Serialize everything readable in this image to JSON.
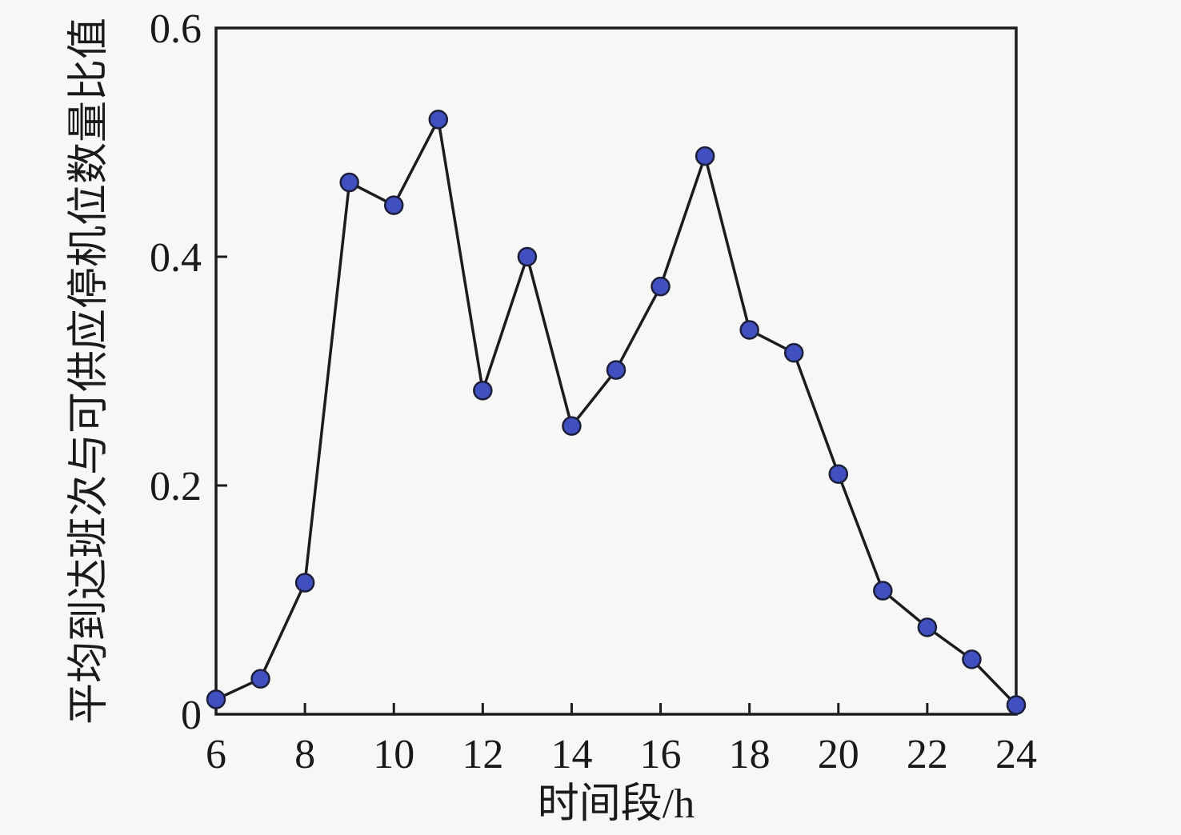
{
  "figure": {
    "background": "#f7f7f6",
    "axis_color": "#1c1c1c",
    "line_color": "#1c1c1c",
    "marker_fill": "#4150c0",
    "marker_edge": "#1b1f3a"
  },
  "chart_data": {
    "type": "line",
    "x": [
      6,
      7,
      8,
      9,
      10,
      11,
      12,
      13,
      14,
      15,
      16,
      17,
      18,
      19,
      20,
      21,
      22,
      23,
      24
    ],
    "values": [
      0.013,
      0.031,
      0.115,
      0.465,
      0.445,
      0.52,
      0.283,
      0.4,
      0.252,
      0.301,
      0.374,
      0.488,
      0.336,
      0.316,
      0.21,
      0.108,
      0.076,
      0.048,
      0.008
    ],
    "series_name": "平均到达班次与可供应停机位数量比值",
    "title": "",
    "xlabel": "时间段/h",
    "ylabel": "平均到达班次与可供应停机位数量比值",
    "xlim": [
      6,
      24
    ],
    "ylim": [
      0,
      0.6
    ],
    "xticks": [
      6,
      8,
      10,
      12,
      14,
      16,
      18,
      20,
      22,
      24
    ],
    "yticks": [
      0,
      0.2,
      0.4,
      0.6
    ],
    "grid": false,
    "legend": null,
    "marker": "circle"
  }
}
